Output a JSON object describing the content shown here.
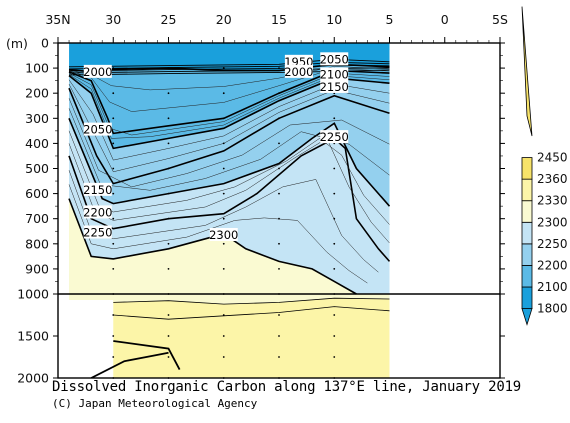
{
  "chart_data": {
    "type": "contour",
    "title": "Dissolved Inorganic Carbon along 137°E line, January 2019",
    "credit": "(C) Japan Meteorological Agency",
    "y_unit_label": "(m)",
    "x_ticks": [
      "35N",
      "30",
      "25",
      "20",
      "15",
      "10",
      "5",
      "0",
      "5S"
    ],
    "x_tick_values": [
      35,
      30,
      25,
      20,
      15,
      10,
      5,
      0,
      -5
    ],
    "xlim": [
      35,
      -5
    ],
    "y_ticks_upper": [
      0,
      100,
      200,
      300,
      400,
      500,
      600,
      700,
      800,
      900,
      1000
    ],
    "y_ticks_lower": [
      1500,
      2000
    ],
    "ylim_upper": [
      0,
      1000
    ],
    "ylim_lower": [
      1000,
      2000
    ],
    "data_extent_lat": [
      34,
      5
    ],
    "colorbar": {
      "levels": [
        1800,
        2100,
        2200,
        2250,
        2300,
        2330,
        2360,
        2450
      ],
      "fill_colors": [
        "#1aa0dc",
        "#5bbae6",
        "#94d0ee",
        "#c4e4f5",
        "#fafad2",
        "#fcf5a8",
        "#f7e36a"
      ]
    },
    "contour_labels": [
      {
        "text": "2000",
        "lat": 31.4,
        "depth": 115
      },
      {
        "text": "1950",
        "lat": 13.2,
        "depth": 75
      },
      {
        "text": "2000",
        "lat": 13.2,
        "depth": 115
      },
      {
        "text": "2050",
        "lat": 10.0,
        "depth": 65
      },
      {
        "text": "2100",
        "lat": 10.0,
        "depth": 125
      },
      {
        "text": "2150",
        "lat": 10.0,
        "depth": 175
      },
      {
        "text": "2050",
        "lat": 31.4,
        "depth": 345
      },
      {
        "text": "2250",
        "lat": 10.0,
        "depth": 375
      },
      {
        "text": "2150",
        "lat": 31.4,
        "depth": 585
      },
      {
        "text": "2200",
        "lat": 31.4,
        "depth": 675
      },
      {
        "text": "2250",
        "lat": 31.4,
        "depth": 755
      },
      {
        "text": "2300",
        "lat": 20.0,
        "depth": 765
      }
    ],
    "isopleths": [
      {
        "value": 2000,
        "points": [
          [
            34,
            105
          ],
          [
            32,
            115
          ],
          [
            30,
            105
          ],
          [
            25,
            100
          ],
          [
            20,
            110
          ],
          [
            15,
            110
          ],
          [
            10,
            85
          ],
          [
            5,
            95
          ]
        ]
      },
      {
        "value": 2050,
        "points": [
          [
            34,
            115
          ],
          [
            32,
            150
          ],
          [
            30.5,
            300
          ],
          [
            30,
            360
          ],
          [
            25,
            330
          ],
          [
            20,
            300
          ],
          [
            15,
            200
          ],
          [
            10,
            110
          ],
          [
            5,
            120
          ]
        ]
      },
      {
        "value": 2100,
        "points": [
          [
            34,
            130
          ],
          [
            32,
            200
          ],
          [
            30,
            420
          ],
          [
            25,
            380
          ],
          [
            20,
            340
          ],
          [
            15,
            230
          ],
          [
            10,
            140
          ],
          [
            5,
            160
          ]
        ]
      },
      {
        "value": 2150,
        "points": [
          [
            34,
            180
          ],
          [
            31.5,
            450
          ],
          [
            30,
            560
          ],
          [
            25,
            500
          ],
          [
            20,
            430
          ],
          [
            15,
            300
          ],
          [
            10,
            210
          ],
          [
            5,
            280
          ]
        ]
      },
      {
        "value": 2200,
        "points": [
          [
            34,
            300
          ],
          [
            31,
            620
          ],
          [
            30,
            640
          ],
          [
            25,
            600
          ],
          [
            20,
            560
          ],
          [
            15,
            480
          ],
          [
            12,
            380
          ],
          [
            10,
            320
          ],
          [
            8,
            500
          ],
          [
            5,
            650
          ]
        ]
      },
      {
        "value": 2250,
        "points": [
          [
            34,
            450
          ],
          [
            32,
            700
          ],
          [
            30,
            740
          ],
          [
            25,
            700
          ],
          [
            20,
            680
          ],
          [
            17,
            600
          ],
          [
            13,
            450
          ],
          [
            10,
            380
          ],
          [
            9,
            420
          ],
          [
            8,
            700
          ],
          [
            6,
            820
          ],
          [
            5,
            870
          ]
        ]
      },
      {
        "value": 2300,
        "points": [
          [
            34,
            620
          ],
          [
            32,
            850
          ],
          [
            30,
            860
          ],
          [
            25,
            820
          ],
          [
            20,
            760
          ],
          [
            18,
            820
          ],
          [
            15,
            870
          ],
          [
            12,
            900
          ],
          [
            10,
            950
          ],
          [
            8,
            1000
          ]
        ]
      }
    ],
    "lower_isopleths": [
      {
        "value": 2330,
        "points": [
          [
            30,
            1100
          ],
          [
            25,
            1080
          ],
          [
            20,
            1120
          ],
          [
            15,
            1100
          ],
          [
            10,
            1050
          ],
          [
            5,
            1060
          ]
        ]
      },
      {
        "value": 2360,
        "points": [
          [
            30,
            1250
          ],
          [
            25,
            1300
          ],
          [
            20,
            1260
          ],
          [
            15,
            1220
          ],
          [
            10,
            1150
          ],
          [
            5,
            1200
          ]
        ]
      }
    ],
    "extra_lines": [
      [
        [
          30,
          1560
        ],
        [
          25,
          1650
        ],
        [
          24,
          1900
        ]
      ],
      [
        [
          32,
          2000
        ],
        [
          29,
          1800
        ],
        [
          27,
          1750
        ],
        [
          25,
          1700
        ]
      ]
    ]
  }
}
